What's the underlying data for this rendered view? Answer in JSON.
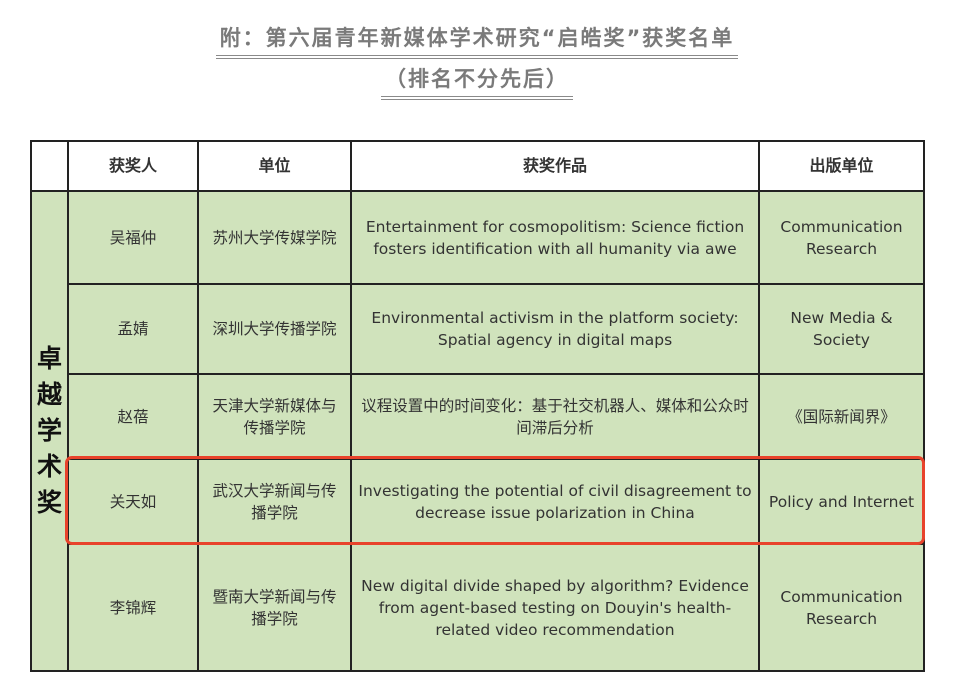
{
  "title": "附：第六届青年新媒体学术研究“启皓奖”获奖名单",
  "subtitle": "（排名不分先后）",
  "table": {
    "headers": [
      "",
      "获奖人",
      "单位",
      "获奖作品",
      "出版单位"
    ],
    "category": "卓越学术奖",
    "rows": [
      {
        "name": "吴福仲",
        "unit": "苏州大学传媒学院",
        "work": "Entertainment for cosmopolitism: Science fiction fosters identification with all humanity via awe",
        "publisher": "Communication Research"
      },
      {
        "name": "孟婧",
        "unit": "深圳大学传播学院",
        "work": "Environmental activism in the platform society: Spatial agency in digital maps",
        "publisher": "New Media & Society"
      },
      {
        "name": "赵蓓",
        "unit": "天津大学新媒体与传播学院",
        "work": "议程设置中的时间变化：基于社交机器人、媒体和公众时间滞后分析",
        "publisher": "《国际新闻界》"
      },
      {
        "name": "关天如",
        "unit": "武汉大学新闻与传播学院",
        "work": "Investigating the potential of civil disagreement to decrease issue polarization in China",
        "publisher": "Policy and Internet"
      },
      {
        "name": "李锦辉",
        "unit": "暨南大学新闻与传播学院",
        "work": "New digital divide shaped by algorithm? Evidence from agent-based testing on Douyin's health-related video recommendation",
        "publisher": "Communication Research"
      }
    ],
    "highlighted_row": 3
  },
  "colors": {
    "cell_background": "#d0e3bc",
    "highlight": "#e8432b",
    "title": "#7a7a7a"
  }
}
